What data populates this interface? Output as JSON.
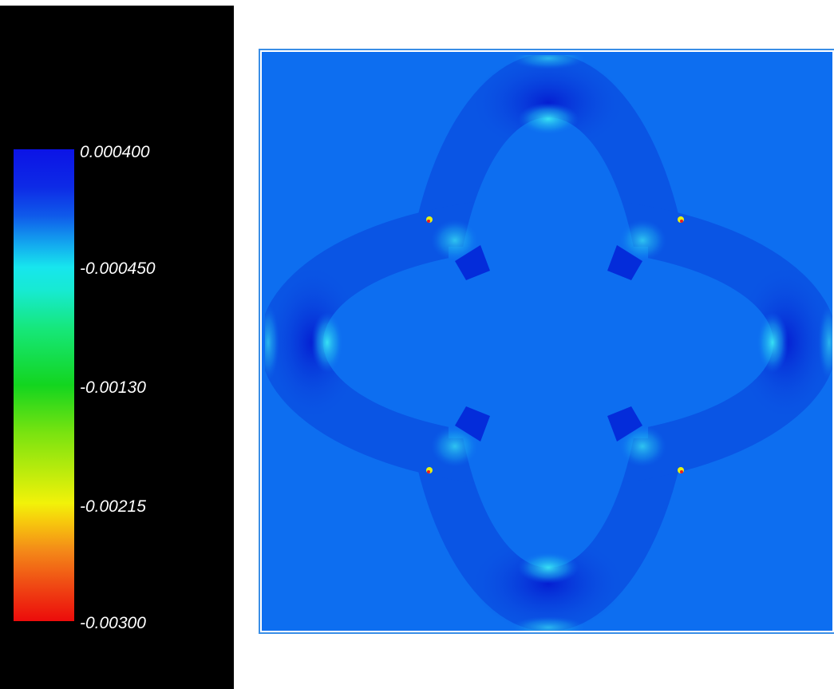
{
  "legend": {
    "ticks": [
      {
        "label": "0.000400"
      },
      {
        "label": "-0.000450"
      },
      {
        "label": "-0.00130"
      },
      {
        "label": "-0.00215"
      },
      {
        "label": "-0.00300"
      }
    ]
  },
  "colors": {
    "background_field": "#0d6ef0",
    "ring_mid": "#0b5be6",
    "ring_dark": "#0626d8",
    "highlight_cyan": "#35e4f2",
    "hotspot_yellow": "#e6f014",
    "hotspot_red": "#ee1e1e"
  }
}
